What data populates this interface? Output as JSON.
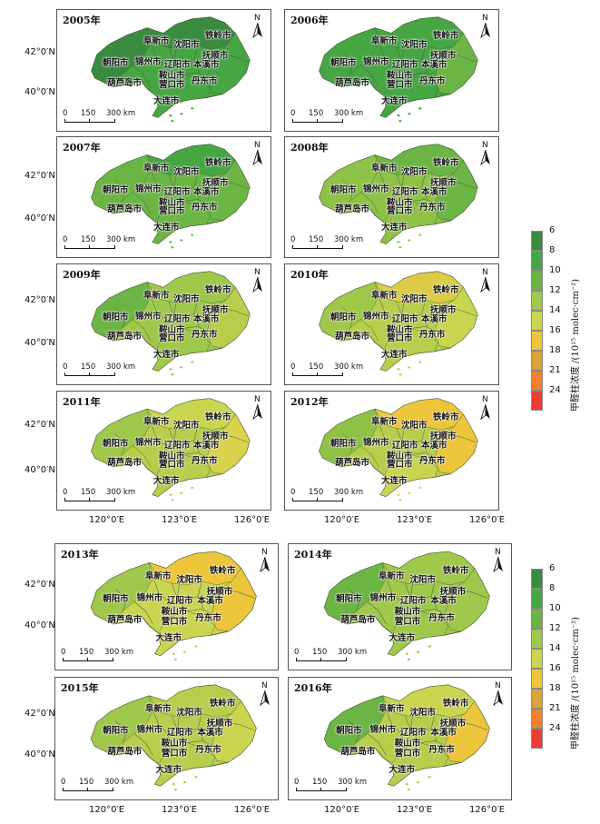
{
  "lat_labels": [
    "42°0′N",
    "40°0′N"
  ],
  "lon_labels": [
    "120°0′E",
    "123°0′E",
    "126°0′E"
  ],
  "scale_labels": [
    "0",
    "150",
    "300 km"
  ],
  "north_label": "N",
  "cities": [
    "铁岭市",
    "阜新市",
    "沈阳市",
    "抚顺市",
    "朝阳市",
    "锦州市",
    "辽阳市",
    "本溪市",
    "鞍山市",
    "营口市",
    "丹东市",
    "葫芦岛市",
    "大连市"
  ],
  "legend": {
    "title": "甲醛柱浓度 /(10¹⁵ molec·cm⁻²)",
    "ticks": [
      "6",
      "8",
      "10",
      "12",
      "14",
      "16",
      "18",
      "21",
      "24"
    ],
    "colors": [
      "#3a8b3f",
      "#46a643",
      "#6bb545",
      "#9fc74a",
      "#c9d54f",
      "#ecc53a",
      "#d9a43a",
      "#f0822e",
      "#ec3e34"
    ]
  },
  "panels": [
    {
      "year": "2005年",
      "colors": {
        "base": "#46a643",
        "east": "#46a643",
        "north": "#3a8b3f",
        "west": "#3a8b3f",
        "south": "#46a643"
      }
    },
    {
      "year": "2006年",
      "colors": {
        "base": "#46a643",
        "east": "#6bb545",
        "north": "#46a643",
        "west": "#46a643",
        "south": "#46a643"
      }
    },
    {
      "year": "2007年",
      "colors": {
        "base": "#6bb545",
        "east": "#6bb545",
        "north": "#46a643",
        "west": "#6bb545",
        "south": "#6bb545"
      }
    },
    {
      "year": "2008年",
      "colors": {
        "base": "#8fc147",
        "east": "#6bb545",
        "north": "#6bb545",
        "west": "#8fc147",
        "south": "#8fc147"
      }
    },
    {
      "year": "2009年",
      "colors": {
        "base": "#9fc74a",
        "east": "#b7ce4c",
        "north": "#9fc74a",
        "west": "#6bb545",
        "south": "#9fc74a"
      }
    },
    {
      "year": "2010年",
      "colors": {
        "base": "#b7ce4c",
        "east": "#c9d54f",
        "north": "#dccb47",
        "west": "#9fc74a",
        "south": "#b7ce4c"
      }
    },
    {
      "year": "2011年",
      "colors": {
        "base": "#b7ce4c",
        "east": "#d9d24a",
        "north": "#c9d54f",
        "west": "#9fc74a",
        "south": "#b7ce4c"
      }
    },
    {
      "year": "2012年",
      "colors": {
        "base": "#b7ce4c",
        "east": "#ecc53a",
        "north": "#ecc53a",
        "west": "#8fc147",
        "south": "#c9d54f"
      }
    },
    {
      "year": "2013年",
      "colors": {
        "base": "#c9d54f",
        "east": "#ecc53a",
        "north": "#ecc53a",
        "west": "#9fc74a",
        "south": "#c9d54f"
      }
    },
    {
      "year": "2014年",
      "colors": {
        "base": "#9fc74a",
        "east": "#9fc74a",
        "north": "#9fc74a",
        "west": "#6bb545",
        "south": "#9fc74a"
      }
    },
    {
      "year": "2015年",
      "colors": {
        "base": "#b7ce4c",
        "east": "#c9d54f",
        "north": "#b7ce4c",
        "west": "#9fc74a",
        "south": "#b7ce4c"
      }
    },
    {
      "year": "2016年",
      "colors": {
        "base": "#b7ce4c",
        "east": "#ecc53a",
        "north": "#c9d54f",
        "west": "#6bb545",
        "south": "#b7ce4c"
      }
    }
  ]
}
